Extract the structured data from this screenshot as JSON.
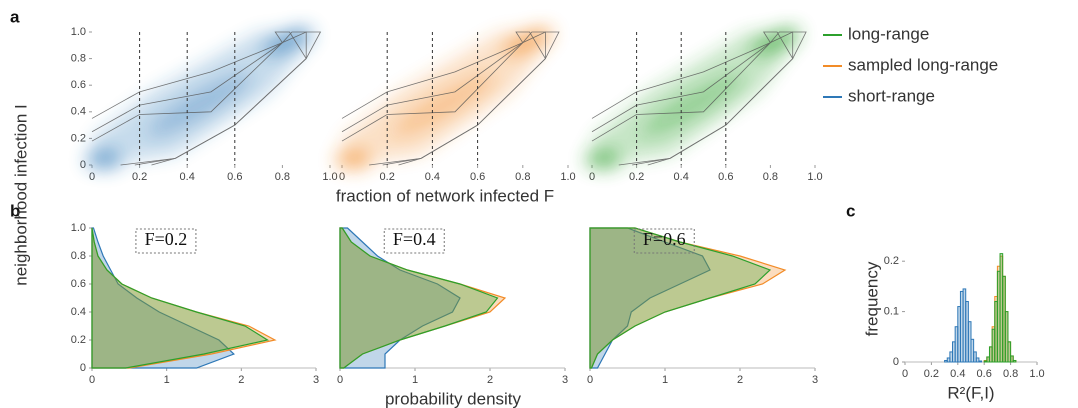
{
  "panel_labels": [
    "a",
    "b",
    "c"
  ],
  "chart_data": [
    {
      "type": "density2d",
      "ylabel": "neighborhood infection I",
      "series": [
        {
          "name": "short-range",
          "color": "#2e78b7"
        }
      ],
      "xlim": [
        0,
        1
      ],
      "ylim": [
        0,
        1
      ],
      "vlines": [
        0.2,
        0.4,
        0.6
      ],
      "xticks": [
        0,
        0.2,
        0.4,
        0.6,
        0.8,
        {
          "value": 1,
          "label": "1.0"
        }
      ],
      "yticks": [
        0,
        0.2,
        0.4,
        0.6,
        0.8,
        {
          "value": 1,
          "label": "1.0"
        }
      ]
    },
    {
      "type": "density2d",
      "xlabel": "fraction of network infected F",
      "series": [
        {
          "name": "sampled long-range",
          "color": "#f28c28"
        }
      ],
      "xlim": [
        0,
        1
      ],
      "ylim": [
        0,
        1
      ],
      "vlines": [
        0.2,
        0.4,
        0.6
      ],
      "xticks": [
        0,
        0.2,
        0.4,
        0.6,
        0.8,
        {
          "value": 1,
          "label": "1.0"
        }
      ]
    },
    {
      "type": "density2d",
      "series": [
        {
          "name": "long-range",
          "color": "#2ca02c"
        }
      ],
      "xlim": [
        0,
        1
      ],
      "ylim": [
        0,
        1
      ],
      "vlines": [
        0.2,
        0.4,
        0.6
      ],
      "xticks": [
        0,
        0.2,
        0.4,
        0.6,
        0.8,
        {
          "value": 1,
          "label": "1.0"
        }
      ]
    },
    {
      "type": "hdensity",
      "annotation": "F=0.2",
      "xlim": [
        0,
        3
      ],
      "ylim": [
        0,
        1
      ],
      "xticks": [
        0,
        1,
        2,
        3
      ],
      "yticks": [
        0,
        0.2,
        0.4,
        0.6,
        0.8,
        {
          "value": 1,
          "label": "1.0"
        }
      ],
      "y": [
        0,
        0.1,
        0.2,
        0.3,
        0.4,
        0.5,
        0.6,
        0.7,
        0.8,
        0.9,
        1
      ],
      "series": [
        {
          "color": "#2e78b7",
          "values": [
            1.4,
            1.9,
            1.7,
            1.3,
            0.9,
            0.6,
            0.35,
            0.25,
            0.15,
            0.08,
            0.02
          ]
        },
        {
          "color": "#f28c28",
          "values": [
            0.5,
            1.6,
            2.45,
            2.1,
            1.4,
            0.8,
            0.4,
            0.2,
            0.08,
            0.03,
            0
          ]
        },
        {
          "color": "#2ca02c",
          "values": [
            0.45,
            1.5,
            2.35,
            2.05,
            1.4,
            0.8,
            0.4,
            0.2,
            0.08,
            0.03,
            0
          ]
        }
      ]
    },
    {
      "type": "hdensity",
      "annotation": "F=0.4",
      "xlabel": "probability density",
      "xlim": [
        0,
        3
      ],
      "ylim": [
        0,
        1
      ],
      "xticks": [
        0,
        1,
        2,
        3
      ],
      "y": [
        0,
        0.1,
        0.2,
        0.3,
        0.4,
        0.5,
        0.6,
        0.7,
        0.8,
        0.9,
        1
      ],
      "series": [
        {
          "color": "#2e78b7",
          "values": [
            0.6,
            0.6,
            0.8,
            1.1,
            1.5,
            1.6,
            1.3,
            0.8,
            0.5,
            0.3,
            0.1
          ]
        },
        {
          "color": "#f28c28",
          "values": [
            0.05,
            0.3,
            0.8,
            1.4,
            2.0,
            2.2,
            1.6,
            0.9,
            0.4,
            0.15,
            0.03
          ]
        },
        {
          "color": "#2ca02c",
          "values": [
            0.05,
            0.3,
            0.8,
            1.4,
            1.95,
            2.1,
            1.6,
            0.9,
            0.4,
            0.15,
            0.03
          ]
        }
      ]
    },
    {
      "type": "hdensity",
      "annotation": "F=0.6",
      "xlim": [
        0,
        3
      ],
      "ylim": [
        0,
        1
      ],
      "xticks": [
        0,
        1,
        2,
        3
      ],
      "y": [
        0,
        0.1,
        0.2,
        0.3,
        0.4,
        0.5,
        0.6,
        0.7,
        0.8,
        0.9,
        1
      ],
      "series": [
        {
          "color": "#2e78b7",
          "values": [
            0.1,
            0.2,
            0.3,
            0.5,
            0.55,
            0.8,
            1.2,
            1.6,
            1.5,
            1.0,
            0.5
          ]
        },
        {
          "color": "#f28c28",
          "values": [
            0.02,
            0.1,
            0.3,
            0.6,
            1.0,
            1.6,
            2.3,
            2.6,
            2.0,
            1.2,
            0.6
          ]
        },
        {
          "color": "#2ca02c",
          "values": [
            0.02,
            0.1,
            0.3,
            0.6,
            1.0,
            1.6,
            2.2,
            2.4,
            1.9,
            1.2,
            0.6
          ]
        }
      ]
    },
    {
      "type": "histogram",
      "xlabel": "R²(F,I)",
      "ylabel": "frequency",
      "xlim": [
        0,
        1
      ],
      "ylim": [
        0,
        0.25
      ],
      "xticks": [
        0,
        0.2,
        0.4,
        0.6,
        0.8,
        {
          "value": 1,
          "label": "1.0"
        }
      ],
      "yticks": [
        0,
        0.1,
        0.2
      ],
      "bins": [
        0.3,
        0.32,
        0.34,
        0.36,
        0.38,
        0.4,
        0.42,
        0.44,
        0.46,
        0.48,
        0.5,
        0.52,
        0.54,
        0.56,
        0.58,
        0.6,
        0.62,
        0.64,
        0.66,
        0.68,
        0.7,
        0.72,
        0.74,
        0.76,
        0.78,
        0.8,
        0.82,
        0.84
      ],
      "series": [
        {
          "color": "#2e78b7",
          "values": [
            0.003,
            0.008,
            0.02,
            0.04,
            0.07,
            0.11,
            0.14,
            0.145,
            0.12,
            0.08,
            0.045,
            0.02,
            0.008,
            0.002,
            0,
            0,
            0,
            0,
            0,
            0,
            0,
            0,
            0,
            0,
            0,
            0,
            0
          ]
        },
        {
          "color": "#f28c28",
          "values": [
            0,
            0,
            0,
            0,
            0,
            0,
            0,
            0,
            0,
            0,
            0,
            0,
            0,
            0,
            0,
            0.003,
            0.01,
            0.03,
            0.07,
            0.13,
            0.19,
            0.21,
            0.17,
            0.1,
            0.04,
            0.012,
            0.003
          ]
        },
        {
          "color": "#2ca02c",
          "values": [
            0,
            0,
            0,
            0,
            0,
            0,
            0,
            0,
            0,
            0,
            0,
            0,
            0,
            0,
            0,
            0.002,
            0.01,
            0.03,
            0.065,
            0.12,
            0.18,
            0.215,
            0.17,
            0.1,
            0.04,
            0.012,
            0.003
          ]
        }
      ]
    }
  ]
}
